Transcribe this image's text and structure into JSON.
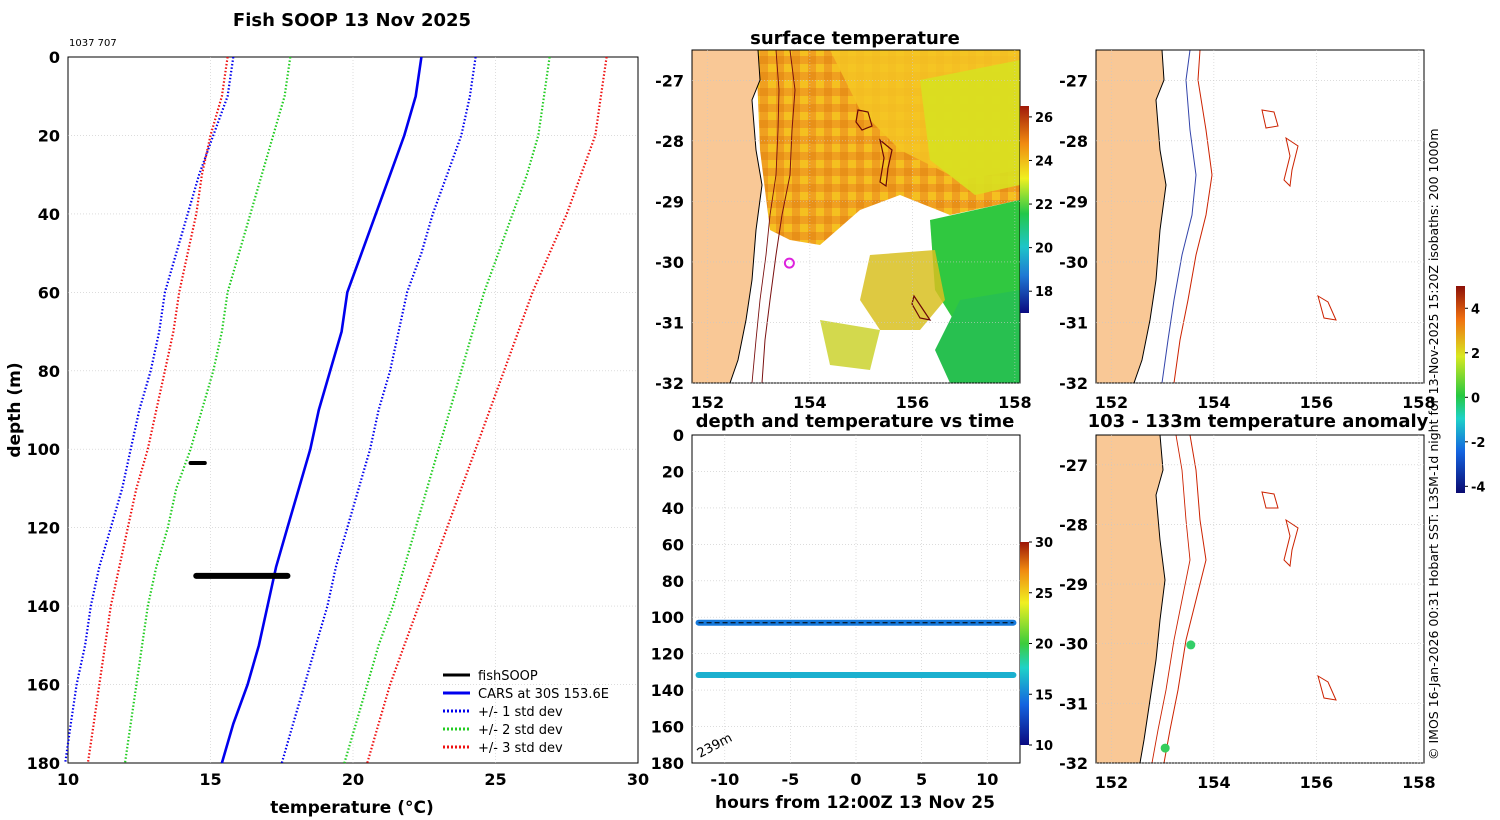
{
  "main_title": "Fish SOOP 13 Nov 2025",
  "id_label": "1037 707",
  "credit": "© IMOS 16-Jan-2026 00:31 Hobart SST: L3SM-1d night for 13-Nov-2025 15:20Z isobaths: 200  1000m",
  "colors": {
    "cars": "#0000ee",
    "sd1": "#0000ee",
    "sd2": "#22cc22",
    "sd3": "#ee1111",
    "fish": "#000000",
    "land": "#f9c896",
    "coast": "#000000",
    "isobath_200": "#3344aa",
    "isobath_1000": "#cc2200"
  },
  "chart_data": [
    {
      "type": "line",
      "title": "Fish SOOP 13 Nov 2025",
      "xlabel": "temperature (°C)",
      "ylabel": "depth (m)",
      "xlim": [
        10,
        30
      ],
      "ylim": [
        180,
        0
      ],
      "xticks": [
        "10",
        "15",
        "20",
        "25",
        "30"
      ],
      "yticks": [
        "0",
        "20",
        "40",
        "60",
        "80",
        "100",
        "120",
        "140",
        "160",
        "180"
      ],
      "depth": [
        0,
        10,
        20,
        30,
        40,
        50,
        60,
        70,
        80,
        90,
        100,
        110,
        120,
        130,
        140,
        150,
        160,
        170,
        180
      ],
      "series": [
        {
          "name": "CARS at 30S 153.6E",
          "temp": [
            22.4,
            22.2,
            21.8,
            21.3,
            20.8,
            20.3,
            19.8,
            19.6,
            19.2,
            18.8,
            18.5,
            18.1,
            17.7,
            17.3,
            17.0,
            16.7,
            16.3,
            15.8,
            15.4
          ]
        },
        {
          "name": "+/- 1 std dev",
          "style": "dotted",
          "band": "minus",
          "temp": [
            15.8,
            15.6,
            15.1,
            14.6,
            14.2,
            13.8,
            13.4,
            13.2,
            12.9,
            12.5,
            12.2,
            11.9,
            11.5,
            11.1,
            10.8,
            10.6,
            10.3,
            10.1,
            9.9
          ]
        },
        {
          "name": "+/- 1 std dev",
          "style": "dotted",
          "band": "plus",
          "temp": [
            24.3,
            24.1,
            23.8,
            23.3,
            22.8,
            22.4,
            21.9,
            21.6,
            21.3,
            20.9,
            20.6,
            20.2,
            19.8,
            19.4,
            19.1,
            18.7,
            18.3,
            17.9,
            17.5
          ]
        },
        {
          "name": "+/- 2 std dev",
          "style": "dotted",
          "band": "minus",
          "temp": [
            17.8,
            17.6,
            17.2,
            16.8,
            16.4,
            16.0,
            15.6,
            15.4,
            15.1,
            14.7,
            14.3,
            13.8,
            13.5,
            13.1,
            12.8,
            12.6,
            12.4,
            12.2,
            12.0
          ]
        },
        {
          "name": "+/- 2 std dev",
          "style": "dotted",
          "band": "plus",
          "temp": [
            26.9,
            26.7,
            26.5,
            26.1,
            25.6,
            25.1,
            24.6,
            24.2,
            23.8,
            23.4,
            23.0,
            22.6,
            22.2,
            21.8,
            21.4,
            20.9,
            20.5,
            20.1,
            19.7
          ]
        },
        {
          "name": "+/- 3 std dev",
          "style": "dotted",
          "band": "minus",
          "temp": [
            15.6,
            15.4,
            15.0,
            14.7,
            14.5,
            14.2,
            13.9,
            13.7,
            13.4,
            13.1,
            12.8,
            12.4,
            12.1,
            11.8,
            11.5,
            11.3,
            11.1,
            10.9,
            10.7
          ]
        },
        {
          "name": "+/- 3 std dev",
          "style": "dotted",
          "band": "plus",
          "temp": [
            28.9,
            28.7,
            28.5,
            28.0,
            27.5,
            26.9,
            26.3,
            25.8,
            25.3,
            24.8,
            24.3,
            23.8,
            23.3,
            22.8,
            22.3,
            21.8,
            21.3,
            20.9,
            20.5
          ]
        }
      ],
      "fish_obs": [
        {
          "depth": 103.5,
          "temp_min": 14.3,
          "temp_max": 14.8
        },
        {
          "depth": 132.3,
          "temp_min": 14.5,
          "temp_max": 17.7
        }
      ],
      "legend": {
        "position": "bottom-right",
        "entries": [
          "fishSOOP",
          "CARS at 30S 153.6E",
          "+/- 1 std dev",
          "+/- 2 std dev",
          "+/- 3 std dev"
        ]
      }
    },
    {
      "type": "heatmap",
      "title": "surface temperature",
      "xlim": [
        151.7,
        158.1
      ],
      "ylim": [
        -32,
        -26.5
      ],
      "xticks": [
        "152",
        "154",
        "156",
        "158"
      ],
      "yticks": [
        "-27",
        "-28",
        "-29",
        "-30",
        "-31",
        "-32"
      ],
      "colorbar": {
        "min": 17,
        "max": 26.5,
        "ticks": [
          "26",
          "24",
          "22",
          "20",
          "18"
        ]
      },
      "marker": {
        "lon": 153.6,
        "lat": -30.02
      }
    },
    {
      "type": "map",
      "title": "",
      "xlim": [
        151.7,
        158.1
      ],
      "ylim": [
        -32,
        -26.5
      ],
      "xticks": [
        "152",
        "154",
        "156",
        "158"
      ],
      "yticks": [
        "-27",
        "-28",
        "-29",
        "-30",
        "-31",
        "-32"
      ]
    },
    {
      "type": "scatter",
      "title": "depth and temperature vs time",
      "xlabel": "hours from 12:00Z 13 Nov 25",
      "xlim": [
        -12.5,
        12.5
      ],
      "ylim": [
        180,
        0
      ],
      "xticks": [
        "-10",
        "-5",
        "0",
        "5",
        "10"
      ],
      "yticks": [
        "0",
        "20",
        "40",
        "60",
        "80",
        "100",
        "120",
        "140",
        "160",
        "180"
      ],
      "bottom_depth_label": "239m",
      "colorbar": {
        "min": 10,
        "max": 30,
        "ticks": [
          "30",
          "25",
          "20",
          "15",
          "10"
        ]
      },
      "tracks": [
        {
          "depth": 103,
          "temp": 14.7,
          "hours_from": -12,
          "hours_to": 12
        },
        {
          "depth": 131.7,
          "temp": 16.5,
          "hours_from": -12,
          "hours_to": 12
        }
      ]
    },
    {
      "type": "map",
      "title": "103 - 133m temperature anomaly",
      "xlim": [
        151.7,
        158.1
      ],
      "ylim": [
        -32,
        -26.5
      ],
      "xticks": [
        "152",
        "154",
        "156",
        "158"
      ],
      "yticks": [
        "-27",
        "-28",
        "-29",
        "-30",
        "-31",
        "-32"
      ],
      "colorbar": {
        "min": -4.3,
        "max": 5,
        "ticks": [
          "4",
          "2",
          "0",
          "-2",
          "-4"
        ]
      },
      "points": [
        {
          "lon": 153.55,
          "lat": -30.02,
          "anomaly": 0.0
        },
        {
          "lon": 153.05,
          "lat": -31.75,
          "anomaly": 0.1
        }
      ]
    }
  ]
}
